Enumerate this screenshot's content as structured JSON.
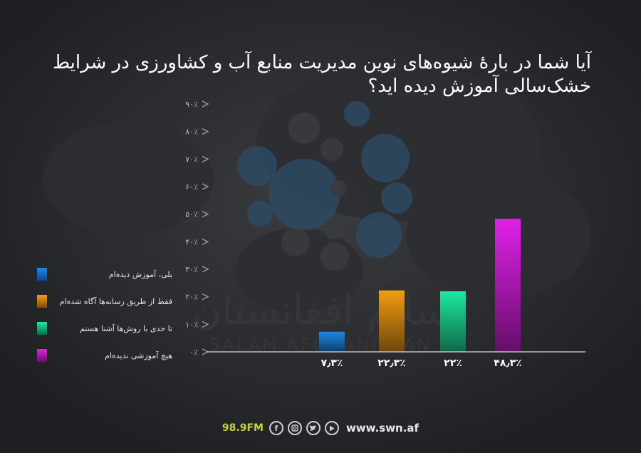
{
  "title": "آیا شما در بارهٔ شیوه‌های نوین مدیریت منابع آب و کشاورزی در شرایط خشک‌سالی آموزش دیده اید؟",
  "watermark": {
    "persian": "سلام افغانستان",
    "latin": "SALAM AFGHANISTAN"
  },
  "chart_data": {
    "type": "bar",
    "categories": [
      "بلی، آموزش دیده‌ام",
      "فقط از طریق رسانه‌ها آگاه شده‌ام",
      "تا حدی با روش‌ها آشنا هستم",
      "هیچ آموزشی ندیده‌ام"
    ],
    "values": [
      7.3,
      22.3,
      22,
      48.3
    ],
    "value_labels": [
      "۷٫۳٪",
      "۲۲٫۳٪",
      "۲۲٪",
      "۴۸٫۳٪"
    ],
    "colors": [
      "#1e88e5",
      "#f39c12",
      "#1de9a0",
      "#e020e8"
    ],
    "ylim": [
      0,
      90
    ],
    "yticks": [
      0,
      10,
      20,
      30,
      40,
      50,
      60,
      70,
      80,
      90
    ],
    "ytick_labels": [
      "۰٪",
      "۱۰٪",
      "۲۰٪",
      "۳۰٪",
      "۴۰٪",
      "۵۰٪",
      "۶۰٪",
      "۷۰٪",
      "۸۰٪",
      "۹۰٪"
    ],
    "grid": false,
    "legend": "left"
  },
  "legend": [
    {
      "label": "بلی، آموزش دیده‌ام",
      "color": "#1e88e5"
    },
    {
      "label": "فقط از طریق رسانه‌ها آگاه شده‌ام",
      "color": "#f39c12"
    },
    {
      "label": "تا حدی با روش‌ها آشنا هستم",
      "color": "#1de9a0"
    },
    {
      "label": "هیچ آموزشی ندیده‌ام",
      "color": "#e020e8"
    }
  ],
  "footer": {
    "station": "98.9FM",
    "icons": [
      "facebook-icon",
      "instagram-icon",
      "twitter-icon",
      "youtube-icon"
    ],
    "url": "www.swn.af"
  }
}
